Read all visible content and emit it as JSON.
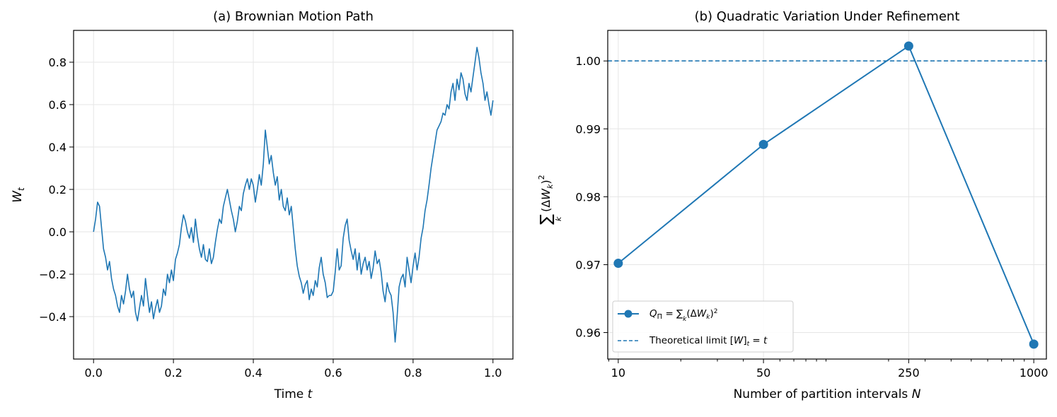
{
  "chart_data": [
    {
      "type": "line",
      "title": "(a) Brownian Motion Path",
      "xlabel": "Time t",
      "ylabel": "W_t",
      "xlim": [
        -0.05,
        1.05
      ],
      "ylim": [
        -0.6,
        0.95
      ],
      "xticks": [
        0.0,
        0.2,
        0.4,
        0.6,
        0.8,
        1.0
      ],
      "xtick_labels": [
        "0.0",
        "0.2",
        "0.4",
        "0.6",
        "0.8",
        "1.0"
      ],
      "yticks": [
        -0.4,
        -0.2,
        0.0,
        0.2,
        0.4,
        0.6,
        0.8
      ],
      "ytick_labels": [
        "−0.4",
        "−0.2",
        "0.0",
        "0.2",
        "0.4",
        "0.6",
        "0.8"
      ],
      "grid": true,
      "color": "#1f77b4",
      "series": [
        {
          "x": [
            0.0,
            0.005,
            0.01,
            0.015,
            0.02,
            0.025,
            0.03,
            0.035,
            0.04,
            0.045,
            0.05,
            0.055,
            0.06,
            0.065,
            0.07,
            0.075,
            0.08,
            0.085,
            0.09,
            0.095,
            0.1,
            0.105,
            0.11,
            0.115,
            0.12,
            0.125,
            0.13,
            0.135,
            0.14,
            0.145,
            0.15,
            0.155,
            0.16,
            0.165,
            0.17,
            0.175,
            0.18,
            0.185,
            0.19,
            0.195,
            0.2,
            0.205,
            0.21,
            0.215,
            0.22,
            0.225,
            0.23,
            0.235,
            0.24,
            0.245,
            0.25,
            0.255,
            0.26,
            0.265,
            0.27,
            0.275,
            0.28,
            0.285,
            0.29,
            0.295,
            0.3,
            0.305,
            0.31,
            0.315,
            0.32,
            0.325,
            0.33,
            0.335,
            0.34,
            0.345,
            0.35,
            0.355,
            0.36,
            0.365,
            0.37,
            0.375,
            0.38,
            0.385,
            0.39,
            0.395,
            0.4,
            0.405,
            0.41,
            0.415,
            0.42,
            0.425,
            0.43,
            0.435,
            0.44,
            0.445,
            0.45,
            0.455,
            0.46,
            0.465,
            0.47,
            0.475,
            0.48,
            0.485,
            0.49,
            0.495,
            0.5,
            0.505,
            0.51,
            0.515,
            0.52,
            0.525,
            0.53,
            0.535,
            0.54,
            0.545,
            0.55,
            0.555,
            0.56,
            0.565,
            0.57,
            0.575,
            0.58,
            0.585,
            0.59,
            0.595,
            0.6,
            0.605,
            0.61,
            0.615,
            0.62,
            0.625,
            0.63,
            0.635,
            0.64,
            0.645,
            0.65,
            0.655,
            0.66,
            0.665,
            0.67,
            0.675,
            0.68,
            0.685,
            0.69,
            0.695,
            0.7,
            0.705,
            0.71,
            0.715,
            0.72,
            0.725,
            0.73,
            0.735,
            0.74,
            0.745,
            0.75,
            0.755,
            0.76,
            0.765,
            0.77,
            0.775,
            0.78,
            0.785,
            0.79,
            0.795,
            0.8,
            0.805,
            0.81,
            0.815,
            0.82,
            0.825,
            0.83,
            0.835,
            0.84,
            0.845,
            0.85,
            0.855,
            0.86,
            0.865,
            0.87,
            0.875,
            0.88,
            0.885,
            0.89,
            0.895,
            0.9,
            0.905,
            0.91,
            0.915,
            0.92,
            0.925,
            0.93,
            0.935,
            0.94,
            0.945,
            0.95,
            0.955,
            0.96,
            0.965,
            0.97,
            0.975,
            0.98,
            0.985,
            0.99,
            0.995,
            1.0
          ],
          "y": [
            0.0,
            0.06,
            0.14,
            0.12,
            0.02,
            -0.08,
            -0.12,
            -0.18,
            -0.14,
            -0.22,
            -0.27,
            -0.3,
            -0.35,
            -0.38,
            -0.3,
            -0.34,
            -0.28,
            -0.2,
            -0.27,
            -0.31,
            -0.28,
            -0.38,
            -0.42,
            -0.36,
            -0.3,
            -0.35,
            -0.22,
            -0.3,
            -0.38,
            -0.33,
            -0.41,
            -0.36,
            -0.32,
            -0.38,
            -0.35,
            -0.27,
            -0.3,
            -0.2,
            -0.24,
            -0.18,
            -0.23,
            -0.13,
            -0.1,
            -0.06,
            0.02,
            0.08,
            0.05,
            0.0,
            -0.03,
            0.02,
            -0.05,
            0.06,
            -0.02,
            -0.08,
            -0.12,
            -0.06,
            -0.13,
            -0.14,
            -0.08,
            -0.15,
            -0.12,
            -0.05,
            0.01,
            0.06,
            0.04,
            0.12,
            0.16,
            0.2,
            0.15,
            0.1,
            0.06,
            0.0,
            0.05,
            0.12,
            0.1,
            0.18,
            0.22,
            0.25,
            0.2,
            0.25,
            0.22,
            0.14,
            0.2,
            0.27,
            0.22,
            0.32,
            0.48,
            0.4,
            0.32,
            0.36,
            0.28,
            0.22,
            0.26,
            0.15,
            0.2,
            0.12,
            0.1,
            0.16,
            0.08,
            0.12,
            0.02,
            -0.08,
            -0.16,
            -0.21,
            -0.24,
            -0.29,
            -0.25,
            -0.23,
            -0.32,
            -0.27,
            -0.3,
            -0.23,
            -0.26,
            -0.17,
            -0.12,
            -0.2,
            -0.24,
            -0.31,
            -0.3,
            -0.3,
            -0.28,
            -0.19,
            -0.08,
            -0.18,
            -0.16,
            -0.03,
            0.03,
            0.06,
            -0.04,
            -0.09,
            -0.13,
            -0.08,
            -0.18,
            -0.1,
            -0.2,
            -0.15,
            -0.12,
            -0.18,
            -0.14,
            -0.22,
            -0.17,
            -0.09,
            -0.15,
            -0.13,
            -0.19,
            -0.28,
            -0.33,
            -0.24,
            -0.28,
            -0.3,
            -0.38,
            -0.52,
            -0.4,
            -0.26,
            -0.22,
            -0.2,
            -0.26,
            -0.12,
            -0.18,
            -0.24,
            -0.16,
            -0.1,
            -0.18,
            -0.12,
            -0.03,
            0.02,
            0.1,
            0.15,
            0.22,
            0.3,
            0.36,
            0.42,
            0.48,
            0.5,
            0.52,
            0.56,
            0.55,
            0.6,
            0.58,
            0.66,
            0.7,
            0.62,
            0.72,
            0.67,
            0.75,
            0.72,
            0.65,
            0.62,
            0.7,
            0.66,
            0.73,
            0.8,
            0.87,
            0.82,
            0.75,
            0.7,
            0.62,
            0.66,
            0.6,
            0.55,
            0.62
          ]
        }
      ]
    },
    {
      "type": "line",
      "title": "(b) Quadratic Variation Under Refinement",
      "xlabel": "Number of partition intervals N",
      "ylabel": "∑k (ΔWk)²",
      "xscale": "log",
      "xlim": [
        8.9,
        1150
      ],
      "ylim": [
        0.9561,
        1.0045
      ],
      "xticks": [
        10,
        50,
        250,
        1000
      ],
      "xtick_labels": [
        "10",
        "50",
        "250",
        "1000"
      ],
      "yticks": [
        0.96,
        0.97,
        0.98,
        0.99,
        1.0
      ],
      "ytick_labels": [
        "0.96",
        "0.97",
        "0.98",
        "0.99",
        "1.00"
      ],
      "grid": true,
      "legend_position": "lower-left",
      "series": [
        {
          "name": "QΠ = ∑k (ΔWk)²",
          "x": [
            10,
            50,
            250,
            1000
          ],
          "y": [
            0.9702,
            0.9877,
            1.0022,
            0.9583
          ],
          "style": "line-marker",
          "color": "#1f77b4"
        },
        {
          "name": "Theoretical limit [W]t = t",
          "y": 1.0,
          "style": "dashed-horizontal",
          "color": "#1f77b4"
        }
      ]
    }
  ]
}
